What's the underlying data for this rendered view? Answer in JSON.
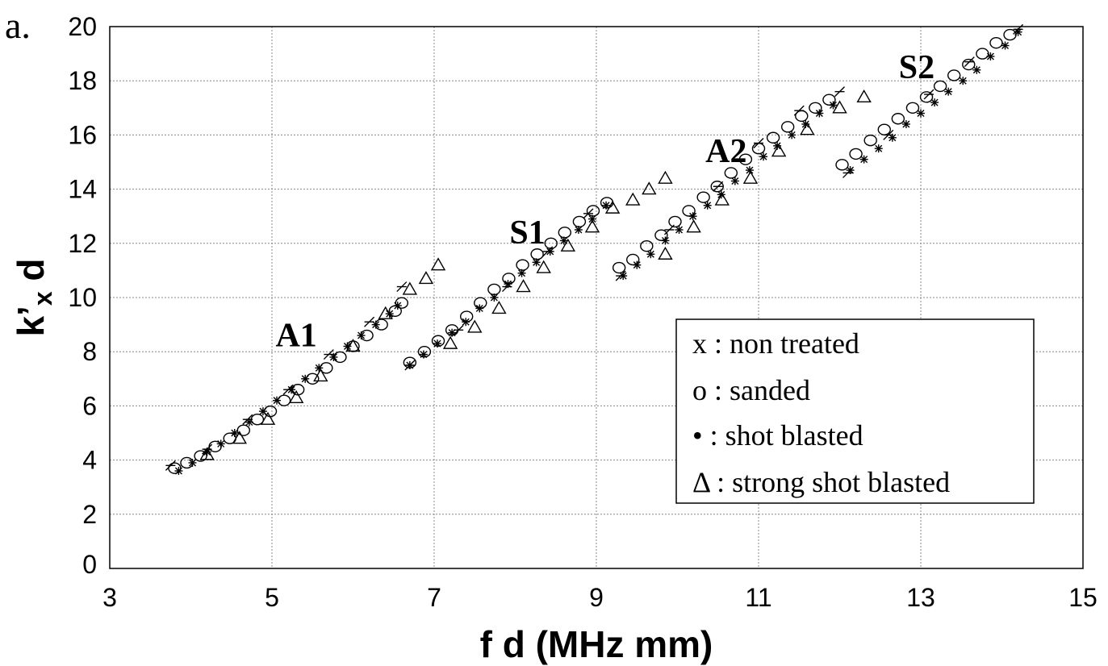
{
  "chart_data": {
    "type": "scatter",
    "panel_label": "a.",
    "xlabel": "f d (MHz mm)",
    "ylabel_main": "k’",
    "ylabel_sub": "x",
    "ylabel_end": " d",
    "xlim": [
      3,
      15
    ],
    "ylim": [
      0,
      20
    ],
    "xticks": [
      3,
      5,
      7,
      9,
      11,
      13,
      15
    ],
    "yticks": [
      0,
      2,
      4,
      6,
      8,
      10,
      12,
      14,
      16,
      18,
      20
    ],
    "grid": true,
    "legend_position": "lower-right",
    "legend": [
      {
        "symbol": "x",
        "text": "x : non treated"
      },
      {
        "symbol": "o",
        "text": "o : sanded"
      },
      {
        "symbol": "•",
        "text": "• : shot blasted"
      },
      {
        "symbol": "Δ",
        "text": "Δ : strong shot blasted"
      }
    ],
    "mode_labels": [
      {
        "text": "A1",
        "x": 5.3,
        "y": 8.2
      },
      {
        "text": "S1",
        "x": 8.15,
        "y": 12.0
      },
      {
        "text": "A2",
        "x": 10.6,
        "y": 15.0
      },
      {
        "text": "S2",
        "x": 12.95,
        "y": 18.1
      }
    ],
    "series": [
      {
        "name": "non treated",
        "marker": "x",
        "points": [
          [
            3.75,
            3.8
          ],
          [
            4.2,
            4.4
          ],
          [
            4.7,
            5.5
          ],
          [
            5.2,
            6.6
          ],
          [
            5.7,
            7.9
          ],
          [
            6.2,
            9.1
          ],
          [
            6.6,
            10.4
          ],
          [
            6.7,
            7.5
          ],
          [
            7.3,
            8.8
          ],
          [
            7.9,
            10.4
          ],
          [
            8.4,
            11.7
          ],
          [
            8.9,
            13.1
          ],
          [
            9.3,
            10.8
          ],
          [
            9.9,
            12.5
          ],
          [
            10.5,
            14.1
          ],
          [
            11.0,
            15.7
          ],
          [
            11.5,
            16.9
          ],
          [
            12.0,
            17.6
          ],
          [
            12.1,
            14.6
          ],
          [
            12.6,
            16.0
          ],
          [
            13.1,
            17.5
          ],
          [
            13.6,
            18.7
          ],
          [
            14.2,
            19.9
          ]
        ]
      },
      {
        "name": "sanded",
        "marker": "o",
        "points": [
          [
            3.8,
            3.7
          ],
          [
            3.95,
            3.9
          ],
          [
            4.12,
            4.15
          ],
          [
            4.3,
            4.5
          ],
          [
            4.48,
            4.8
          ],
          [
            4.65,
            5.1
          ],
          [
            4.82,
            5.5
          ],
          [
            4.98,
            5.8
          ],
          [
            5.15,
            6.2
          ],
          [
            5.32,
            6.6
          ],
          [
            5.5,
            7.0
          ],
          [
            5.67,
            7.4
          ],
          [
            5.84,
            7.8
          ],
          [
            6.0,
            8.2
          ],
          [
            6.17,
            8.6
          ],
          [
            6.35,
            9.0
          ],
          [
            6.52,
            9.5
          ],
          [
            6.6,
            9.8
          ],
          [
            6.7,
            7.6
          ],
          [
            6.88,
            8.0
          ],
          [
            7.05,
            8.4
          ],
          [
            7.22,
            8.8
          ],
          [
            7.4,
            9.3
          ],
          [
            7.57,
            9.8
          ],
          [
            7.74,
            10.3
          ],
          [
            7.92,
            10.7
          ],
          [
            8.09,
            11.2
          ],
          [
            8.27,
            11.6
          ],
          [
            8.44,
            12.0
          ],
          [
            8.61,
            12.4
          ],
          [
            8.79,
            12.8
          ],
          [
            8.96,
            13.2
          ],
          [
            9.13,
            13.5
          ],
          [
            9.28,
            11.1
          ],
          [
            9.45,
            11.4
          ],
          [
            9.62,
            11.9
          ],
          [
            9.8,
            12.3
          ],
          [
            9.97,
            12.8
          ],
          [
            10.14,
            13.2
          ],
          [
            10.32,
            13.7
          ],
          [
            10.49,
            14.1
          ],
          [
            10.66,
            14.6
          ],
          [
            10.84,
            15.1
          ],
          [
            11.0,
            15.5
          ],
          [
            11.18,
            15.9
          ],
          [
            11.36,
            16.3
          ],
          [
            11.53,
            16.7
          ],
          [
            11.7,
            17.0
          ],
          [
            11.87,
            17.3
          ],
          [
            12.03,
            14.9
          ],
          [
            12.2,
            15.3
          ],
          [
            12.38,
            15.8
          ],
          [
            12.55,
            16.2
          ],
          [
            12.72,
            16.6
          ],
          [
            12.9,
            17.0
          ],
          [
            13.07,
            17.4
          ],
          [
            13.24,
            17.8
          ],
          [
            13.41,
            18.2
          ],
          [
            13.59,
            18.6
          ],
          [
            13.76,
            19.0
          ],
          [
            13.93,
            19.4
          ],
          [
            14.1,
            19.7
          ]
        ]
      },
      {
        "name": "shot blasted",
        "marker": "*",
        "points": [
          [
            3.85,
            3.6
          ],
          [
            4.02,
            3.9
          ],
          [
            4.2,
            4.3
          ],
          [
            4.37,
            4.6
          ],
          [
            4.54,
            5.0
          ],
          [
            4.72,
            5.4
          ],
          [
            4.89,
            5.8
          ],
          [
            5.06,
            6.2
          ],
          [
            5.24,
            6.6
          ],
          [
            5.41,
            7.0
          ],
          [
            5.58,
            7.4
          ],
          [
            5.76,
            7.8
          ],
          [
            5.93,
            8.2
          ],
          [
            6.1,
            8.6
          ],
          [
            6.28,
            9.0
          ],
          [
            6.45,
            9.4
          ],
          [
            6.55,
            9.7
          ],
          [
            6.7,
            7.5
          ],
          [
            6.87,
            7.9
          ],
          [
            7.04,
            8.3
          ],
          [
            7.22,
            8.7
          ],
          [
            7.39,
            9.1
          ],
          [
            7.56,
            9.6
          ],
          [
            7.74,
            10.0
          ],
          [
            7.91,
            10.5
          ],
          [
            8.08,
            10.9
          ],
          [
            8.26,
            11.3
          ],
          [
            8.43,
            11.7
          ],
          [
            8.6,
            12.1
          ],
          [
            8.78,
            12.5
          ],
          [
            8.95,
            12.9
          ],
          [
            9.12,
            13.4
          ],
          [
            9.33,
            10.8
          ],
          [
            9.5,
            11.2
          ],
          [
            9.67,
            11.6
          ],
          [
            9.85,
            12.1
          ],
          [
            10.02,
            12.5
          ],
          [
            10.19,
            13.0
          ],
          [
            10.37,
            13.4
          ],
          [
            10.54,
            13.8
          ],
          [
            10.71,
            14.3
          ],
          [
            10.89,
            14.7
          ],
          [
            11.06,
            15.2
          ],
          [
            11.23,
            15.6
          ],
          [
            11.41,
            16.0
          ],
          [
            11.58,
            16.4
          ],
          [
            11.75,
            16.8
          ],
          [
            11.92,
            17.1
          ],
          [
            12.13,
            14.7
          ],
          [
            12.3,
            15.1
          ],
          [
            12.48,
            15.5
          ],
          [
            12.65,
            15.9
          ],
          [
            12.82,
            16.4
          ],
          [
            13.0,
            16.8
          ],
          [
            13.17,
            17.2
          ],
          [
            13.34,
            17.6
          ],
          [
            13.52,
            18.0
          ],
          [
            13.69,
            18.4
          ],
          [
            13.86,
            18.9
          ],
          [
            14.04,
            19.3
          ],
          [
            14.2,
            19.8
          ]
        ]
      },
      {
        "name": "strong shot blasted",
        "marker": "Δ",
        "points": [
          [
            4.2,
            4.2
          ],
          [
            4.6,
            4.8
          ],
          [
            4.95,
            5.5
          ],
          [
            5.3,
            6.3
          ],
          [
            5.6,
            7.1
          ],
          [
            6.0,
            8.2
          ],
          [
            6.4,
            9.4
          ],
          [
            6.7,
            10.3
          ],
          [
            6.9,
            10.7
          ],
          [
            7.05,
            11.2
          ],
          [
            7.2,
            8.3
          ],
          [
            7.5,
            8.9
          ],
          [
            7.8,
            9.6
          ],
          [
            8.1,
            10.4
          ],
          [
            8.35,
            11.1
          ],
          [
            8.65,
            11.9
          ],
          [
            8.95,
            12.6
          ],
          [
            9.2,
            13.3
          ],
          [
            9.45,
            13.6
          ],
          [
            9.65,
            14.0
          ],
          [
            9.85,
            14.4
          ],
          [
            9.85,
            11.6
          ],
          [
            10.2,
            12.6
          ],
          [
            10.55,
            13.6
          ],
          [
            10.9,
            14.4
          ],
          [
            11.25,
            15.4
          ],
          [
            11.6,
            16.2
          ],
          [
            12.0,
            17.0
          ],
          [
            12.3,
            17.4
          ]
        ]
      }
    ]
  }
}
